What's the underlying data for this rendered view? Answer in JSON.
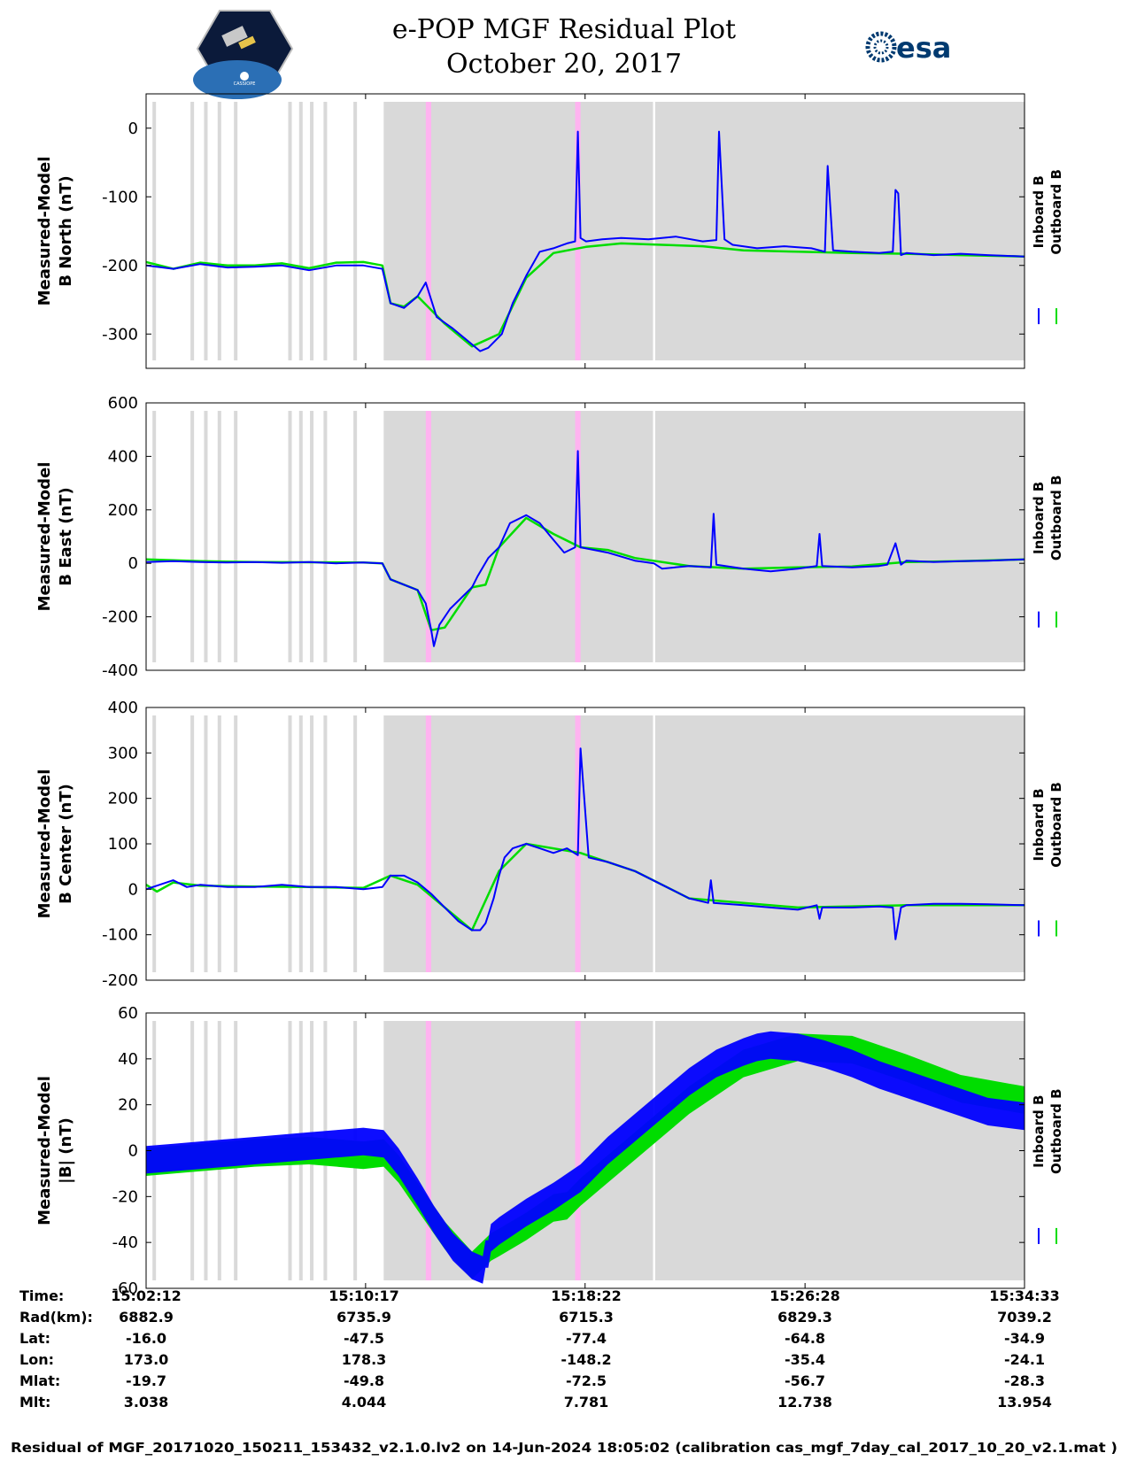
{
  "title": {
    "line1": "e-POP MGF Residual Plot",
    "line2": "October 20, 2017"
  },
  "logos": {
    "left_caption": "CASSIOPE",
    "right_text": "esa",
    "right_color": "#003a70"
  },
  "colors": {
    "inboard": "#0000ff",
    "outboard": "#00dd00",
    "shade": "#d9d9d9",
    "pink": "#ffb3f0"
  },
  "legend": {
    "inboard_label": "Inboard B",
    "outboard_label": "Outboard B"
  },
  "table": {
    "row_labels": [
      "Time:",
      "Rad(km):",
      "Lat:",
      "Lon:",
      "Mlat:",
      "Mlt:"
    ],
    "columns": [
      {
        "time": "15:02:12",
        "rad": "6882.9",
        "lat": "-16.0",
        "lon": "173.0",
        "mlat": "-19.7",
        "mlt": "3.038"
      },
      {
        "time": "15:10:17",
        "rad": "6735.9",
        "lat": "-47.5",
        "lon": "178.3",
        "mlat": "-49.8",
        "mlt": "4.044"
      },
      {
        "time": "15:18:22",
        "rad": "6715.3",
        "lat": "-77.4",
        "lon": "-148.2",
        "mlat": "-72.5",
        "mlt": "7.781"
      },
      {
        "time": "15:26:28",
        "rad": "6829.3",
        "lat": "-64.8",
        "lon": "-35.4",
        "mlat": "-56.7",
        "mlt": "12.738"
      },
      {
        "time": "15:34:33",
        "rad": "7039.2",
        "lat": "-34.9",
        "lon": "-24.1",
        "mlat": "-28.3",
        "mlt": "13.954"
      }
    ]
  },
  "footer": "Residual of MGF_20171020_150211_153432_v2.1.0.lv2 on 14-Jun-2024 18:05:02 (calibration cas_mgf_7day_cal_2017_10_20_v2.1.mat )",
  "chart_data": {
    "type": "line",
    "x_unit": "minutes since 15:02:12",
    "x_range": [
      0,
      32.35
    ],
    "x_ticks": [
      0,
      8.083,
      16.167,
      24.267,
      32.35
    ],
    "shaded_regions": [
      [
        8.75,
        32.35
      ]
    ],
    "pink_regions": [
      [
        10.3,
        10.5
      ],
      [
        15.8,
        16.0
      ]
    ],
    "white_line_in_shade": 18.7,
    "gray_lines": [
      0.3,
      1.7,
      2.2,
      2.7,
      3.3,
      5.3,
      5.7,
      6.1,
      6.6,
      7.7
    ],
    "panels": [
      {
        "ylabel_line1": "Measured-Model",
        "ylabel_line2": "B North (nT)",
        "ylim": [
          -350,
          50
        ],
        "yticks": [
          0,
          -100,
          -200,
          -300
        ],
        "series": [
          {
            "name": "Inboard B",
            "x": [
              0,
              1,
              2,
              3,
              4,
              5,
              6,
              7,
              8,
              8.7,
              9.0,
              9.5,
              10,
              10.3,
              10.7,
              11.3,
              12,
              12.3,
              12.6,
              13.1,
              13.5,
              14,
              14.5,
              15,
              15.5,
              15.8,
              15.9,
              16.0,
              16.2,
              16.8,
              17.5,
              18.5,
              19.5,
              20.5,
              21.0,
              21.1,
              21.3,
              21.6,
              22.5,
              23.5,
              24.5,
              25.0,
              25.1,
              25.3,
              26,
              27,
              27.5,
              27.6,
              27.7,
              27.8,
              28,
              29,
              30,
              31,
              32.35
            ],
            "y": [
              -200,
              -205,
              -198,
              -203,
              -202,
              -200,
              -207,
              -200,
              -200,
              -205,
              -255,
              -262,
              -245,
              -225,
              -275,
              -292,
              -315,
              -325,
              -320,
              -300,
              -255,
              -215,
              -180,
              -175,
              -168,
              -165,
              -5,
              -160,
              -165,
              -162,
              -160,
              -162,
              -158,
              -165,
              -163,
              -5,
              -162,
              -170,
              -175,
              -172,
              -175,
              -180,
              -55,
              -178,
              -180,
              -182,
              -180,
              -90,
              -95,
              -185,
              -182,
              -185,
              -183,
              -185,
              -187
            ]
          },
          {
            "name": "Outboard B",
            "x": [
              0,
              1,
              2,
              3,
              4,
              5,
              6,
              7,
              8,
              8.7,
              9.0,
              9.5,
              10,
              11,
              12,
              13,
              14,
              15,
              16.2,
              17.5,
              19,
              20.5,
              22,
              24,
              26,
              28,
              30,
              32.35
            ],
            "y": [
              -195,
              -205,
              -196,
              -200,
              -200,
              -197,
              -204,
              -196,
              -195,
              -200,
              -255,
              -260,
              -245,
              -285,
              -318,
              -300,
              -218,
              -182,
              -173,
              -168,
              -170,
              -172,
              -178,
              -180,
              -182,
              -183,
              -185,
              -187
            ]
          }
        ]
      },
      {
        "ylabel_line1": "Measured-Model",
        "ylabel_line2": "B East (nT)",
        "ylim": [
          -400,
          600
        ],
        "yticks": [
          600,
          400,
          200,
          0,
          -200,
          -400
        ],
        "series": [
          {
            "name": "Inboard B",
            "x": [
              0,
              1,
              2,
              3,
              4,
              5,
              6,
              7,
              8,
              8.7,
              9.0,
              10,
              10.3,
              10.5,
              10.6,
              10.8,
              11.2,
              12,
              12.2,
              12.6,
              13.0,
              13.4,
              14,
              14.5,
              14.9,
              15.4,
              15.8,
              15.9,
              16.0,
              16.5,
              17,
              18,
              18.7,
              19,
              20,
              20.8,
              20.9,
              21.0,
              22,
              23,
              24,
              24.7,
              24.8,
              24.9,
              26,
              27,
              27.3,
              27.6,
              27.8,
              28,
              29,
              30,
              31,
              32.35
            ],
            "y": [
              5,
              8,
              5,
              3,
              5,
              2,
              5,
              0,
              3,
              0,
              -60,
              -100,
              -150,
              -250,
              -310,
              -230,
              -170,
              -90,
              -50,
              20,
              60,
              150,
              180,
              150,
              100,
              40,
              60,
              420,
              60,
              50,
              40,
              10,
              0,
              -20,
              -10,
              -15,
              185,
              -5,
              -20,
              -30,
              -20,
              -10,
              110,
              -10,
              -15,
              -10,
              -5,
              75,
              -5,
              10,
              5,
              8,
              10,
              15
            ]
          },
          {
            "name": "Outboard B",
            "x": [
              0,
              2,
              4,
              6,
              8,
              8.7,
              9.0,
              10,
              10.5,
              11,
              12,
              12.5,
              13,
              14,
              15,
              16,
              17,
              18,
              20,
              22,
              24,
              26,
              28,
              30,
              32.35
            ],
            "y": [
              15,
              8,
              5,
              4,
              3,
              0,
              -60,
              -100,
              -250,
              -240,
              -90,
              -80,
              60,
              170,
              110,
              60,
              50,
              20,
              -10,
              -20,
              -15,
              -12,
              5,
              8,
              15
            ]
          }
        ]
      },
      {
        "ylabel_line1": "Measured-Model",
        "ylabel_line2": "B Center (nT)",
        "ylim": [
          -200,
          400
        ],
        "yticks": [
          400,
          300,
          200,
          100,
          0,
          -100,
          -200
        ],
        "series": [
          {
            "name": "Inboard B",
            "x": [
              0,
              1,
              1.5,
              2,
              3,
              4,
              5,
              6,
              7,
              8,
              8.7,
              9.0,
              9.5,
              10,
              10.5,
              11,
              11.5,
              12,
              12.3,
              12.5,
              12.8,
              13.0,
              13.2,
              13.5,
              14,
              14.5,
              15,
              15.5,
              15.9,
              16.0,
              16.3,
              17,
              18,
              19,
              20,
              20.7,
              20.8,
              20.9,
              22,
              23,
              24,
              24.7,
              24.8,
              24.9,
              26,
              27,
              27.5,
              27.6,
              27.8,
              28,
              29,
              30,
              31,
              32.35
            ],
            "y": [
              0,
              20,
              5,
              10,
              5,
              5,
              10,
              5,
              5,
              0,
              5,
              30,
              30,
              15,
              -10,
              -40,
              -70,
              -90,
              -90,
              -75,
              -20,
              30,
              70,
              90,
              100,
              90,
              80,
              90,
              75,
              310,
              70,
              60,
              40,
              10,
              -20,
              -30,
              20,
              -30,
              -35,
              -40,
              -45,
              -35,
              -65,
              -40,
              -40,
              -38,
              -40,
              -110,
              -40,
              -35,
              -32,
              -32,
              -33,
              -35
            ]
          },
          {
            "name": "Outboard B",
            "x": [
              0,
              0.4,
              1,
              2,
              4,
              6,
              8,
              9,
              10,
              11,
              12,
              13,
              14,
              16,
              18,
              20,
              24,
              28,
              32.35
            ],
            "y": [
              10,
              -5,
              15,
              8,
              6,
              5,
              3,
              30,
              10,
              -40,
              -90,
              40,
              100,
              80,
              40,
              -20,
              -40,
              -35,
              -35
            ]
          }
        ]
      },
      {
        "ylabel_line1": "Measured-Model",
        "ylabel_line2": "|B| (nT)",
        "ylim": [
          -60,
          60
        ],
        "yticks": [
          60,
          40,
          20,
          0,
          -20,
          -40,
          -60
        ],
        "band_half_width": 6,
        "series": [
          {
            "name": "Inboard B",
            "x": [
              0,
              1,
              2,
              3,
              4,
              5,
              6,
              7,
              8,
              8.75,
              9.3,
              10,
              10.6,
              11.3,
              12,
              12.4,
              12.5,
              12.6,
              12.7,
              13,
              14,
              15,
              16,
              17,
              18,
              19,
              20,
              21,
              22,
              22.5,
              23,
              24,
              25,
              26,
              27,
              28,
              29,
              30,
              31,
              32.35
            ],
            "y": [
              -4,
              -3,
              -2,
              -1,
              0,
              1,
              2,
              3,
              4,
              3,
              -5,
              -18,
              -30,
              -42,
              -50,
              -52,
              -45,
              -45,
              -38,
              -35,
              -27,
              -20,
              -12,
              0,
              10,
              20,
              30,
              38,
              43,
              45,
              46,
              45,
              42,
              38,
              33,
              29,
              25,
              21,
              17,
              15
            ]
          },
          {
            "name": "Outboard B",
            "x": [
              0,
              2,
              4,
              6,
              8,
              8.75,
              9.3,
              10,
              11,
              12,
              12.7,
              13,
              14,
              15,
              15.5,
              16,
              17,
              18,
              20,
              22,
              24,
              26,
              28,
              30,
              32.35
            ],
            "y": [
              -5,
              -3,
              -1,
              0,
              -2,
              -1,
              -8,
              -20,
              -37,
              -50,
              -42,
              -40,
              -33,
              -25,
              -24,
              -18,
              -8,
              2,
              22,
              38,
              45,
              44,
              36,
              27,
              22
            ]
          }
        ]
      }
    ]
  }
}
